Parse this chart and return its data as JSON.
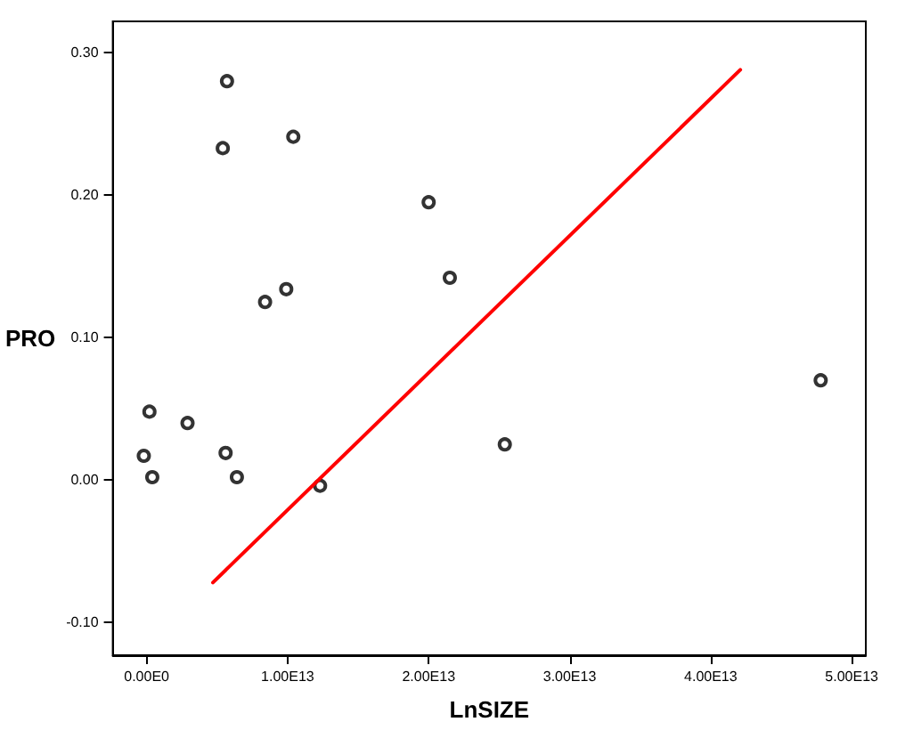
{
  "chart_data": {
    "type": "scatter",
    "xlabel": "LnSIZE",
    "ylabel": "PRO",
    "xlim": [
      -2400000000000.0,
      51000000000000.0
    ],
    "ylim": [
      -0.123,
      0.322
    ],
    "xticks": [
      {
        "value": 0,
        "label": "0.00E0"
      },
      {
        "value": 10000000000000.0,
        "label": "1.00E13"
      },
      {
        "value": 20000000000000.0,
        "label": "2.00E13"
      },
      {
        "value": 30000000000000.0,
        "label": "3.00E13"
      },
      {
        "value": 40000000000000.0,
        "label": "4.00E13"
      },
      {
        "value": 50000000000000.0,
        "label": "5.00E13"
      }
    ],
    "yticks": [
      {
        "value": -0.1,
        "label": "-0.10"
      },
      {
        "value": 0,
        "label": "0.00"
      },
      {
        "value": 0.1,
        "label": "0.10"
      },
      {
        "value": 0.2,
        "label": "0.20"
      },
      {
        "value": 0.3,
        "label": "0.30"
      }
    ],
    "grid": false,
    "marker": "circle",
    "series": [
      {
        "color": "#000000",
        "x": [
          5700000000000.0,
          5400000000000.0,
          10400000000000.0,
          20000000000000.0,
          9900000000000.0,
          8400000000000.0,
          21500000000000.0,
          200000000000.0,
          2900000000000.0,
          -200000000000.0,
          400000000000.0,
          5600000000000.0,
          6400000000000.0,
          12300000000000.0,
          25400000000000.0,
          47800000000000.0
        ],
        "values": [
          0.28,
          0.233,
          0.241,
          0.195,
          0.134,
          0.125,
          0.142,
          0.048,
          0.04,
          0.017,
          0.002,
          0.019,
          0.002,
          -0.004,
          0.025,
          0.07
        ]
      },
      {
        "type": "line",
        "color": "#ff0000",
        "marker": "none",
        "line_style": "solid",
        "x": [
          4700000000000.0,
          42100000000000.0
        ],
        "values": [
          -0.072,
          0.288
        ]
      }
    ]
  }
}
